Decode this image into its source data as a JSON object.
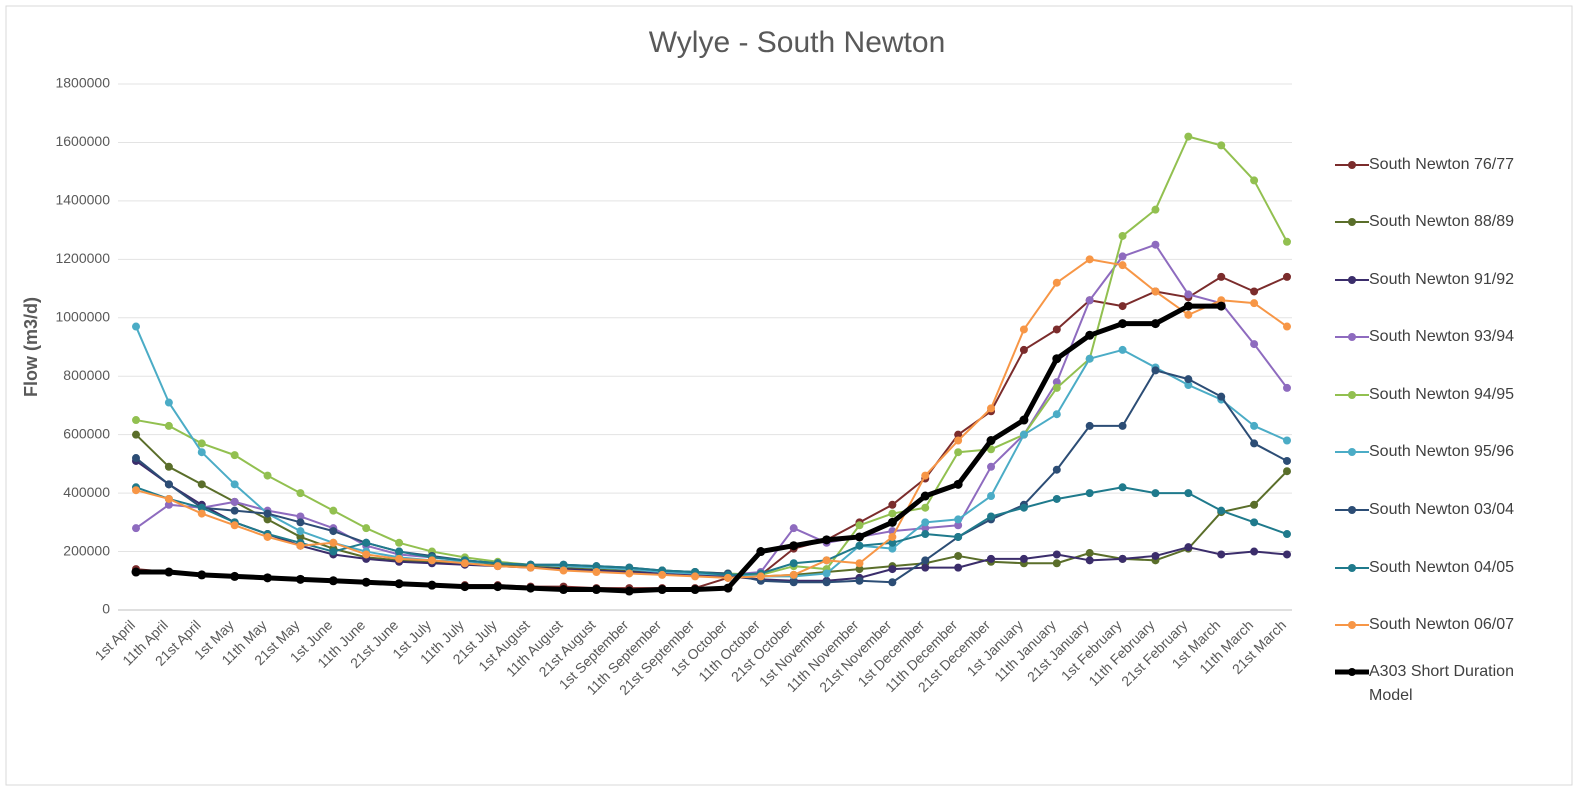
{
  "chart_data": {
    "type": "line",
    "title": "Wylye - South Newton",
    "y_label": "Flow (m3/d)",
    "categories": [
      "1st April",
      "11th April",
      "21st April",
      "1st May",
      "11th May",
      "21st May",
      "1st June",
      "11th June",
      "21st June",
      "1st July",
      "11th July",
      "21st July",
      "1st August",
      "11th August",
      "21st August",
      "1st September",
      "11th September",
      "21st September",
      "1st October",
      "11th October",
      "21st October",
      "1st November",
      "11th November",
      "21st November",
      "1st December",
      "11th December",
      "21st December",
      "1st January",
      "11th January",
      "21st January",
      "1st February",
      "11th February",
      "21st February",
      "1st March",
      "11th March",
      "21st March"
    ],
    "ylim": [
      0,
      1800000
    ],
    "yticks": [
      0,
      200000,
      400000,
      600000,
      800000,
      1000000,
      1200000,
      1400000,
      1600000,
      1800000
    ],
    "grid": true,
    "legend": "right",
    "series": [
      {
        "name": "South Newton 76/77",
        "color": "#7b2c2c",
        "linewidth": 2,
        "values": [
          140000,
          130000,
          120000,
          115000,
          110000,
          105000,
          100000,
          95000,
          90000,
          85000,
          85000,
          85000,
          80000,
          80000,
          75000,
          75000,
          75000,
          75000,
          110000,
          120000,
          210000,
          240000,
          300000,
          360000,
          450000,
          600000,
          680000,
          890000,
          960000,
          1060000,
          1040000,
          1090000,
          1070000,
          1140000,
          1090000,
          1140000
        ]
      },
      {
        "name": "South Newton 88/89",
        "color": "#5a6e2a",
        "linewidth": 2,
        "values": [
          600000,
          490000,
          430000,
          370000,
          310000,
          250000,
          210000,
          180000,
          170000,
          165000,
          160000,
          155000,
          150000,
          145000,
          140000,
          135000,
          130000,
          125000,
          120000,
          115000,
          120000,
          130000,
          140000,
          150000,
          160000,
          185000,
          165000,
          160000,
          160000,
          195000,
          175000,
          170000,
          210000,
          335000,
          360000,
          475000
        ]
      },
      {
        "name": "South Newton 91/92",
        "color": "#3b2d6b",
        "linewidth": 2,
        "values": [
          510000,
          430000,
          360000,
          300000,
          260000,
          220000,
          190000,
          175000,
          165000,
          160000,
          155000,
          150000,
          145000,
          140000,
          135000,
          130000,
          125000,
          120000,
          115000,
          105000,
          100000,
          100000,
          110000,
          140000,
          145000,
          145000,
          175000,
          175000,
          190000,
          170000,
          175000,
          185000,
          215000,
          190000,
          200000,
          190000
        ]
      },
      {
        "name": "South Newton 93/94",
        "color": "#8e6bbf",
        "linewidth": 2,
        "values": [
          280000,
          360000,
          350000,
          370000,
          340000,
          320000,
          280000,
          220000,
          190000,
          180000,
          170000,
          160000,
          155000,
          150000,
          145000,
          140000,
          130000,
          125000,
          120000,
          130000,
          280000,
          230000,
          250000,
          270000,
          280000,
          290000,
          490000,
          600000,
          780000,
          1060000,
          1210000,
          1250000,
          1080000,
          1050000,
          910000,
          760000
        ]
      },
      {
        "name": "South Newton 94/95",
        "color": "#92c050",
        "linewidth": 2,
        "values": [
          650000,
          630000,
          570000,
          530000,
          460000,
          400000,
          340000,
          280000,
          230000,
          200000,
          180000,
          165000,
          155000,
          150000,
          145000,
          140000,
          135000,
          130000,
          125000,
          120000,
          150000,
          140000,
          290000,
          330000,
          350000,
          540000,
          550000,
          600000,
          760000,
          860000,
          1280000,
          1370000,
          1620000,
          1590000,
          1470000,
          1260000
        ]
      },
      {
        "name": "South Newton 95/96",
        "color": "#4bacc6",
        "linewidth": 2,
        "values": [
          970000,
          710000,
          540000,
          430000,
          330000,
          270000,
          230000,
          200000,
          180000,
          170000,
          165000,
          160000,
          155000,
          150000,
          145000,
          140000,
          130000,
          125000,
          120000,
          115000,
          115000,
          125000,
          220000,
          210000,
          300000,
          310000,
          390000,
          600000,
          670000,
          860000,
          890000,
          830000,
          770000,
          720000,
          630000,
          580000
        ]
      },
      {
        "name": "South Newton 03/04",
        "color": "#2c4d75",
        "linewidth": 2,
        "values": [
          520000,
          430000,
          350000,
          340000,
          330000,
          300000,
          270000,
          230000,
          200000,
          185000,
          170000,
          160000,
          155000,
          155000,
          150000,
          145000,
          135000,
          130000,
          125000,
          100000,
          95000,
          95000,
          100000,
          95000,
          170000,
          250000,
          310000,
          360000,
          480000,
          630000,
          630000,
          820000,
          790000,
          730000,
          570000,
          510000
        ]
      },
      {
        "name": "South Newton 04/05",
        "color": "#1f7a8c",
        "linewidth": 2,
        "values": [
          420000,
          380000,
          350000,
          300000,
          260000,
          230000,
          200000,
          230000,
          200000,
          180000,
          170000,
          160000,
          155000,
          155000,
          150000,
          145000,
          135000,
          130000,
          120000,
          125000,
          160000,
          170000,
          220000,
          230000,
          260000,
          250000,
          320000,
          350000,
          380000,
          400000,
          420000,
          400000,
          400000,
          340000,
          300000,
          260000
        ]
      },
      {
        "name": "South Newton 06/07",
        "color": "#f79646",
        "linewidth": 2,
        "values": [
          410000,
          380000,
          330000,
          290000,
          250000,
          220000,
          230000,
          190000,
          175000,
          170000,
          160000,
          150000,
          145000,
          135000,
          130000,
          125000,
          120000,
          115000,
          110000,
          115000,
          120000,
          170000,
          160000,
          250000,
          460000,
          580000,
          690000,
          960000,
          1120000,
          1200000,
          1180000,
          1090000,
          1010000,
          1060000,
          1050000,
          970000
        ]
      },
      {
        "name": "A303 Short Duration Model",
        "color": "#000000",
        "linewidth": 5,
        "values": [
          130000,
          130000,
          120000,
          115000,
          110000,
          105000,
          100000,
          95000,
          90000,
          85000,
          80000,
          80000,
          75000,
          70000,
          70000,
          65000,
          70000,
          70000,
          75000,
          200000,
          220000,
          240000,
          250000,
          300000,
          390000,
          430000,
          580000,
          650000,
          860000,
          940000,
          980000,
          980000,
          1040000,
          1040000,
          null,
          null
        ]
      }
    ]
  }
}
